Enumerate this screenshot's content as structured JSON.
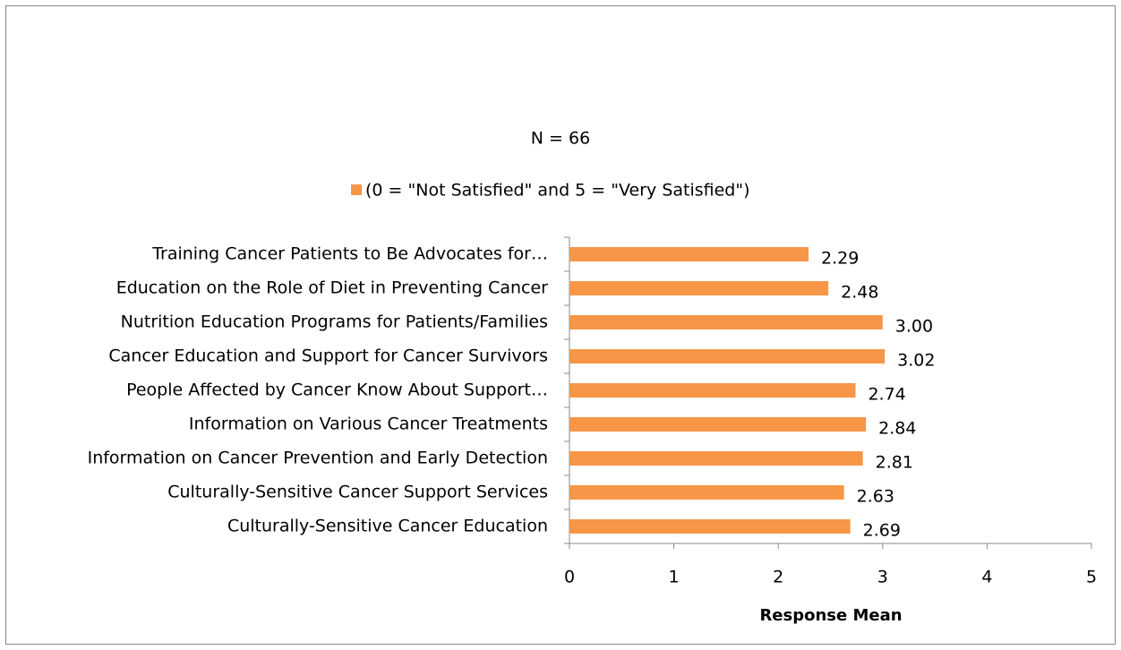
{
  "chart_data": {
    "type": "bar",
    "orientation": "horizontal",
    "title": "N = 66",
    "categories": [
      "Training Cancer Patients to Be Advocates for…",
      "Education on the Role of Diet in Preventing Cancer",
      "Nutrition Education Programs for Patients/Families",
      "Cancer Education and Support for Cancer Survivors",
      "People Affected by Cancer Know About Support…",
      "Information on Various Cancer Treatments",
      "Information on Cancer Prevention and Early Detection",
      "Culturally-Sensitive Cancer Support Services",
      "Culturally-Sensitive Cancer Education"
    ],
    "series": [
      {
        "name": "(0 = \"Not Satisfied\" and 5 = \"Very Satisfied\")",
        "color": "#f79646",
        "values": [
          2.29,
          2.48,
          3,
          3.02,
          2.74,
          2.84,
          2.81,
          2.63,
          2.69
        ],
        "value_labels": [
          "2.29",
          "2.48",
          "3.00",
          "3.02",
          "2.74",
          "2.84",
          "2.81",
          "2.63",
          "2.69"
        ]
      }
    ],
    "xlabel": "Response Mean",
    "xlim": [
      0,
      5
    ],
    "xticks": [
      0,
      1,
      2,
      3,
      4,
      5
    ],
    "grid": false,
    "legend": "top"
  }
}
